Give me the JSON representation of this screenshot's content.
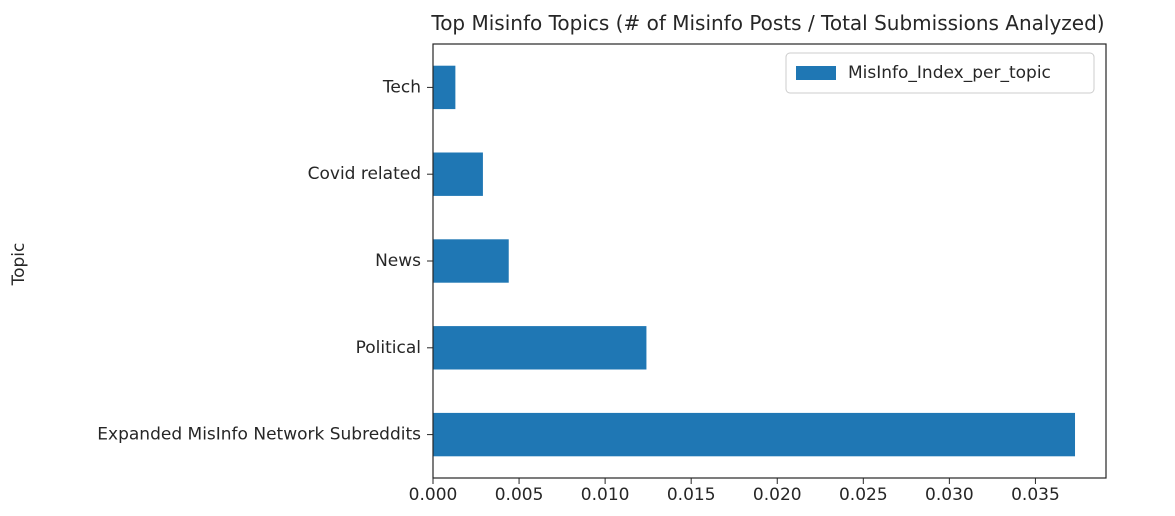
{
  "chart_data": {
    "type": "bar",
    "orientation": "horizontal",
    "title": "Top Misinfo Topics (# of Misinfo Posts / Total Submissions Analyzed)",
    "ylabel": "Topic",
    "xlabel": "",
    "categories": [
      "Expanded MisInfo Network Subreddits",
      "Political",
      "News",
      "Covid related",
      "Tech"
    ],
    "series": [
      {
        "name": "MisInfo_Index_per_topic",
        "values": [
          0.0373,
          0.0124,
          0.0044,
          0.0029,
          0.0013
        ],
        "color": "#1f77b4"
      }
    ],
    "xlim": [
      0,
      0.0391
    ],
    "xticks": [
      "0.000",
      "0.005",
      "0.010",
      "0.015",
      "0.020",
      "0.025",
      "0.030",
      "0.035"
    ],
    "grid": false,
    "legend_position": "top-right"
  }
}
